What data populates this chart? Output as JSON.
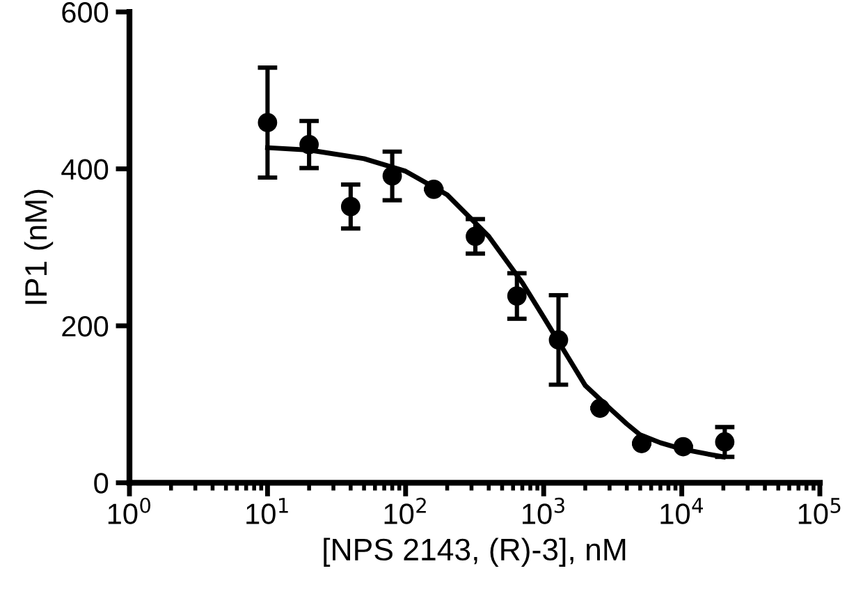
{
  "chart_data": {
    "type": "scatter",
    "xlabel": "[NPS 2143, (R)-3], nM",
    "ylabel": "IP1 (nM)",
    "log": "x",
    "series": [
      {
        "marker": "circle",
        "color": "#000000",
        "x": [
          10,
          20,
          40,
          80,
          160,
          320,
          640,
          1280,
          2560,
          5120,
          10240,
          20480
        ],
        "values": [
          459,
          431,
          352,
          391,
          374,
          314,
          238,
          182,
          95,
          50,
          46,
          52
        ],
        "errors": [
          70,
          30,
          28,
          31,
          null,
          22,
          29,
          57,
          null,
          null,
          null,
          19
        ]
      },
      {
        "type": "line",
        "marker": "none",
        "color": "#000000",
        "x": [
          10,
          20,
          50,
          100,
          200,
          400,
          700,
          1000,
          1500,
          2000,
          3000,
          4000,
          5000,
          7000,
          10000,
          15000,
          20000
        ],
        "values": [
          427,
          424,
          413,
          397,
          367,
          314,
          255,
          211,
          160,
          124,
          95,
          75,
          61,
          51,
          43,
          37,
          33
        ]
      }
    ],
    "xlim": [
      1,
      100000
    ],
    "ylim": [
      0,
      600
    ],
    "xticks": [
      {
        "value": 1,
        "label": "10$^{0}$"
      },
      {
        "value": 10,
        "label": "10$^{1}$"
      },
      {
        "value": 100,
        "label": "10$^{2}$"
      },
      {
        "value": 1000,
        "label": "10$^{3}$"
      },
      {
        "value": 10000,
        "label": "10$^{4}$"
      },
      {
        "value": 100000,
        "label": "10$^{5}$"
      }
    ],
    "yticks": [
      0,
      200,
      400,
      600
    ],
    "grid": false,
    "legend": false
  }
}
